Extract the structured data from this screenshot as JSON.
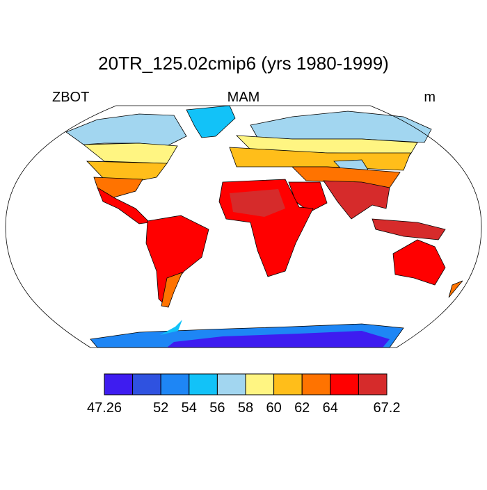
{
  "title": "20TR_125.02cmip6 (yrs 1980-1999)",
  "left_string": "ZBOT",
  "center_string": "MAM",
  "right_string": "m",
  "colorbar": {
    "colors": [
      "#3e1cf0",
      "#2f52e0",
      "#1e86f5",
      "#12c2f8",
      "#a2d6f0",
      "#fff582",
      "#ffbe1a",
      "#ff7300",
      "#ff0000",
      "#d62b2b"
    ],
    "levels": [
      47.26,
      null,
      52,
      54,
      56,
      58,
      60,
      62,
      64,
      null,
      67.2
    ]
  }
}
